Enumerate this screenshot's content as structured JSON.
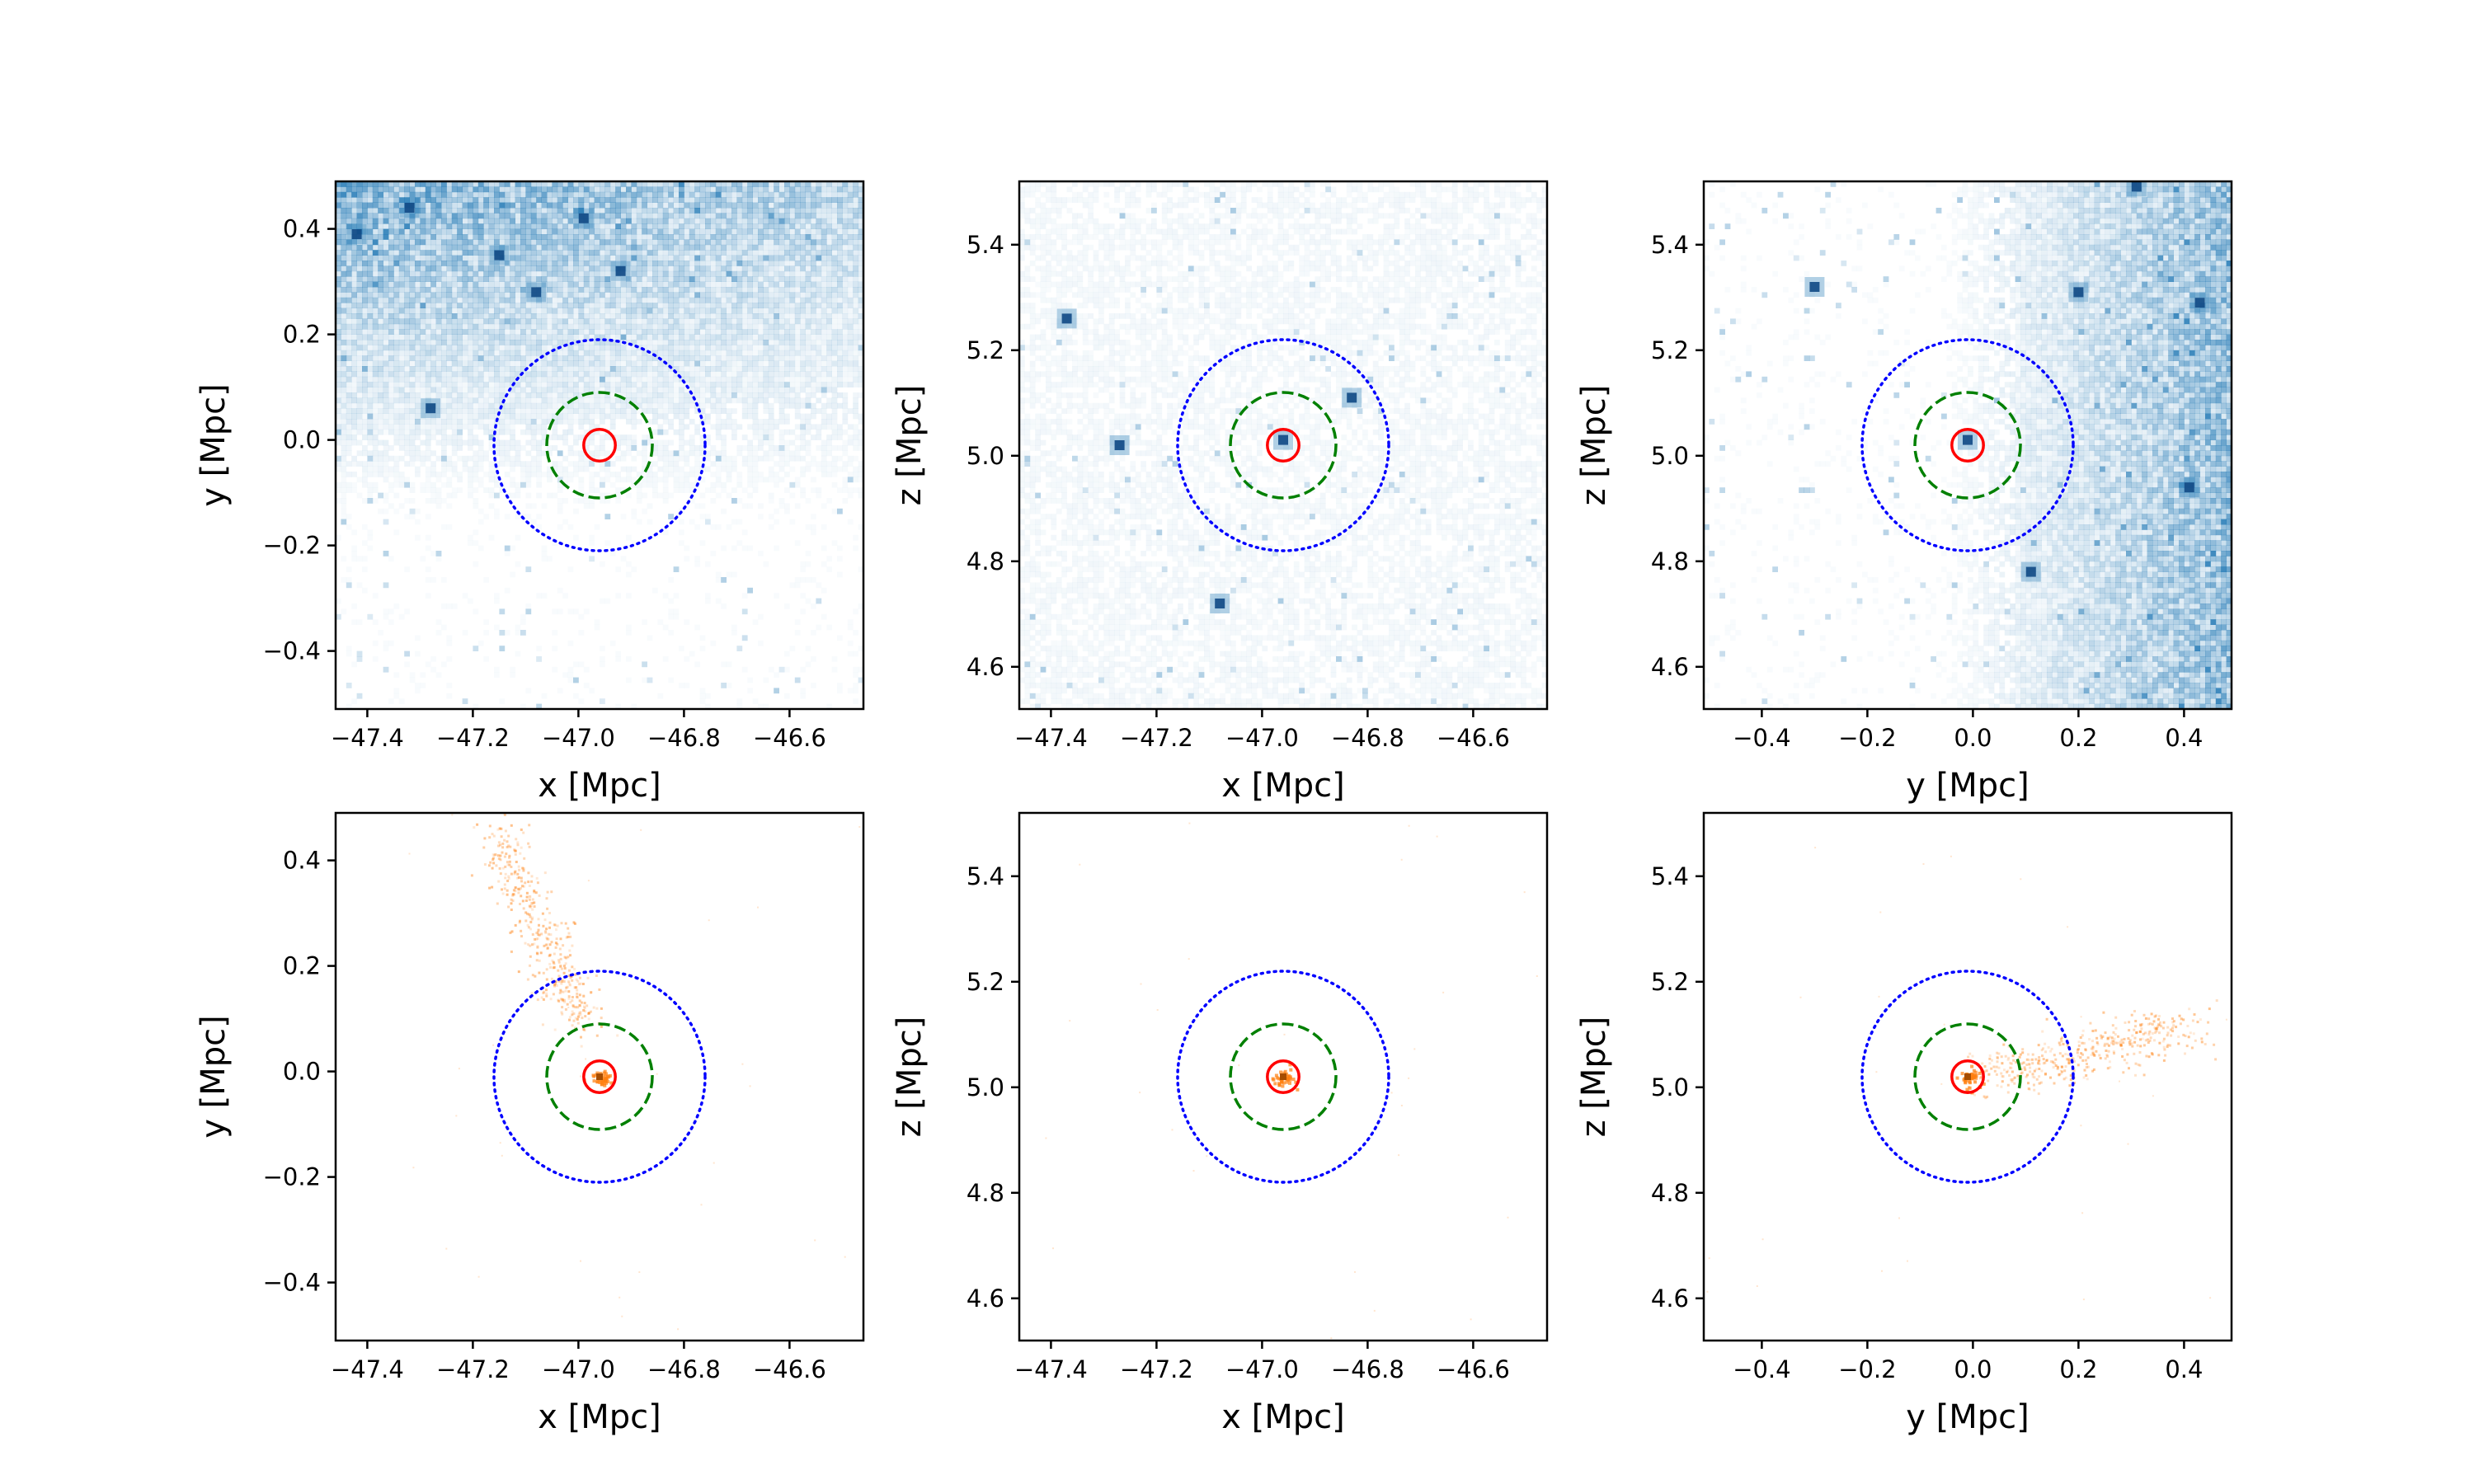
{
  "figure": {
    "title": ""
  },
  "colors": {
    "dark_matter": "#1f77b4",
    "stars": "#ff7f0e",
    "inner_circle": "#ff0000",
    "middle_circle": "#008000",
    "outer_circle": "#0000ff"
  },
  "chart_data": [
    {
      "type": "heatmap",
      "component": "dark-matter",
      "row": 0,
      "col": 0,
      "xlabel": "x [Mpc]",
      "ylabel": "y [Mpc]",
      "xlim": [
        -47.46,
        -46.46
      ],
      "ylim": [
        -0.51,
        0.49
      ],
      "xticks": [
        -47.4,
        -47.2,
        -47.0,
        -46.8,
        -46.6
      ],
      "xtick_labels": [
        "−47.4",
        "−47.2",
        "−47.0",
        "−46.8",
        "−46.6"
      ],
      "yticks": [
        -0.4,
        -0.2,
        0.0,
        0.2,
        0.4
      ],
      "ytick_labels": [
        "−0.4",
        "−0.2",
        "0.0",
        "0.2",
        "0.4"
      ],
      "center": [
        -46.96,
        -0.01
      ],
      "circle_radii": [
        0.03,
        0.1,
        0.2
      ],
      "circle_styles": [
        "solid",
        "dashed",
        "dotted"
      ],
      "density_gradient": "concentrated toward top-left",
      "clumps": [
        [
          -46.99,
          0.42
        ],
        [
          -47.42,
          0.39
        ],
        [
          -47.15,
          0.35
        ],
        [
          -47.08,
          0.28
        ],
        [
          -47.28,
          0.06
        ],
        [
          -46.92,
          0.32
        ],
        [
          -47.32,
          0.44
        ]
      ]
    },
    {
      "type": "heatmap",
      "component": "dark-matter",
      "row": 0,
      "col": 1,
      "xlabel": "x [Mpc]",
      "ylabel": "z [Mpc]",
      "xlim": [
        -47.46,
        -46.46
      ],
      "ylim": [
        4.52,
        5.52
      ],
      "xticks": [
        -47.4,
        -47.2,
        -47.0,
        -46.8,
        -46.6
      ],
      "xtick_labels": [
        "−47.4",
        "−47.2",
        "−47.0",
        "−46.8",
        "−46.6"
      ],
      "yticks": [
        4.6,
        4.8,
        5.0,
        5.2,
        5.4
      ],
      "ytick_labels": [
        "4.6",
        "4.8",
        "5.0",
        "5.2",
        "5.4"
      ],
      "center": [
        -46.96,
        5.02
      ],
      "circle_radii": [
        0.03,
        0.1,
        0.2
      ],
      "circle_styles": [
        "solid",
        "dashed",
        "dotted"
      ],
      "density_gradient": "sparse uniform",
      "clumps": [
        [
          -47.37,
          5.26
        ],
        [
          -47.27,
          5.02
        ],
        [
          -47.08,
          4.72
        ],
        [
          -46.96,
          5.03
        ],
        [
          -46.83,
          5.11
        ]
      ]
    },
    {
      "type": "heatmap",
      "component": "dark-matter",
      "row": 0,
      "col": 2,
      "xlabel": "y [Mpc]",
      "ylabel": "z [Mpc]",
      "xlim": [
        -0.51,
        0.49
      ],
      "ylim": [
        4.52,
        5.52
      ],
      "xticks": [
        -0.4,
        -0.2,
        0.0,
        0.2,
        0.4
      ],
      "xtick_labels": [
        "−0.4",
        "−0.2",
        "0.0",
        "0.2",
        "0.4"
      ],
      "yticks": [
        4.6,
        4.8,
        5.0,
        5.2,
        5.4
      ],
      "ytick_labels": [
        "4.6",
        "4.8",
        "5.0",
        "5.2",
        "5.4"
      ],
      "center": [
        -0.01,
        5.02
      ],
      "circle_radii": [
        0.03,
        0.1,
        0.2
      ],
      "circle_styles": [
        "solid",
        "dashed",
        "dotted"
      ],
      "density_gradient": "concentrated toward right",
      "clumps": [
        [
          0.41,
          4.94
        ],
        [
          0.31,
          5.51
        ],
        [
          0.2,
          5.31
        ],
        [
          0.43,
          5.29
        ],
        [
          0.11,
          4.78
        ],
        [
          -0.3,
          5.32
        ],
        [
          -0.01,
          5.03
        ]
      ]
    },
    {
      "type": "scatter",
      "component": "stars",
      "row": 1,
      "col": 0,
      "xlabel": "x [Mpc]",
      "ylabel": "y [Mpc]",
      "xlim": [
        -47.46,
        -46.46
      ],
      "ylim": [
        -0.51,
        0.49
      ],
      "xticks": [
        -47.4,
        -47.2,
        -47.0,
        -46.8,
        -46.6
      ],
      "xtick_labels": [
        "−47.4",
        "−47.2",
        "−47.0",
        "−46.8",
        "−46.6"
      ],
      "yticks": [
        -0.4,
        -0.2,
        0.0,
        0.2,
        0.4
      ],
      "ytick_labels": [
        "−0.4",
        "−0.2",
        "0.0",
        "0.2",
        "0.4"
      ],
      "center": [
        -46.96,
        -0.01
      ],
      "circle_radii": [
        0.03,
        0.1,
        0.2
      ],
      "circle_styles": [
        "solid",
        "dashed",
        "dotted"
      ],
      "stream": {
        "from": [
          -47.16,
          0.46
        ],
        "to": [
          -47.0,
          0.1
        ],
        "spread": 0.04
      }
    },
    {
      "type": "scatter",
      "component": "stars",
      "row": 1,
      "col": 1,
      "xlabel": "x [Mpc]",
      "ylabel": "z [Mpc]",
      "xlim": [
        -47.46,
        -46.46
      ],
      "ylim": [
        4.52,
        5.52
      ],
      "xticks": [
        -47.4,
        -47.2,
        -47.0,
        -46.8,
        -46.6
      ],
      "xtick_labels": [
        "−47.4",
        "−47.2",
        "−47.0",
        "−46.8",
        "−46.6"
      ],
      "yticks": [
        4.6,
        4.8,
        5.0,
        5.2,
        5.4
      ],
      "ytick_labels": [
        "4.6",
        "4.8",
        "5.0",
        "5.2",
        "5.4"
      ],
      "center": [
        -46.96,
        5.02
      ],
      "circle_radii": [
        0.03,
        0.1,
        0.2
      ],
      "circle_styles": [
        "solid",
        "dashed",
        "dotted"
      ],
      "stream": null
    },
    {
      "type": "scatter",
      "component": "stars",
      "row": 1,
      "col": 2,
      "xlabel": "y [Mpc]",
      "ylabel": "z [Mpc]",
      "xlim": [
        -0.51,
        0.49
      ],
      "ylim": [
        4.52,
        5.52
      ],
      "xticks": [
        -0.4,
        -0.2,
        0.0,
        0.2,
        0.4
      ],
      "xtick_labels": [
        "−0.4",
        "−0.2",
        "0.0",
        "0.2",
        "0.4"
      ],
      "yticks": [
        4.6,
        4.8,
        5.0,
        5.2,
        5.4
      ],
      "ytick_labels": [
        "4.6",
        "4.8",
        "5.0",
        "5.2",
        "5.4"
      ],
      "center": [
        -0.01,
        5.02
      ],
      "circle_radii": [
        0.03,
        0.1,
        0.2
      ],
      "circle_styles": [
        "solid",
        "dashed",
        "dotted"
      ],
      "stream": {
        "from": [
          0.02,
          5.02
        ],
        "to": [
          0.42,
          5.12
        ],
        "spread": 0.04
      }
    }
  ]
}
